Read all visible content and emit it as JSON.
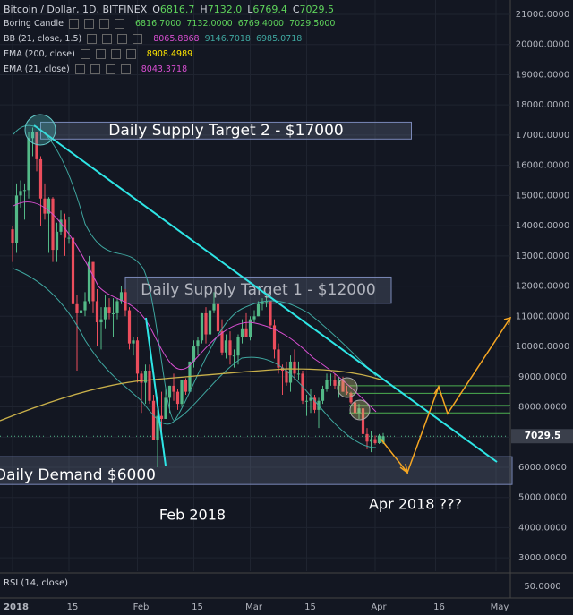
{
  "header": {
    "symbol": "Bitcoin / Dollar, 1D, BITFINEX",
    "ohlc": [
      [
        "O",
        "6816.7"
      ],
      [
        "H",
        "7132.0"
      ],
      [
        "L",
        "6769.4"
      ],
      [
        "C",
        "7029.5"
      ]
    ]
  },
  "indicators": [
    {
      "name": "Boring Candle",
      "values": [
        "6816.7000",
        "7132.0000",
        "6769.4000",
        "7029.5000"
      ],
      "colors": [
        "#5ed35b",
        "#5ed35b",
        "#5ed35b",
        "#5ed35b"
      ]
    },
    {
      "name": "BB (21, close, 1.5)",
      "values": [
        "8065.8868",
        "9146.7018",
        "6985.0718"
      ],
      "colors": [
        "#d94fd2",
        "#3fa7a0",
        "#3fa7a0"
      ]
    },
    {
      "name": "EMA (200, close)",
      "values": [
        "8908.4989"
      ],
      "colors": [
        "#ffe600"
      ]
    },
    {
      "name": "EMA (21, close)",
      "values": [
        "8043.3718"
      ],
      "colors": [
        "#d94fd2"
      ]
    }
  ],
  "chart": {
    "ylim": [
      2560,
      21474
    ],
    "yticks": [
      {
        "value": 21000,
        "label": "21000.0000"
      },
      {
        "value": 20000,
        "label": "20000.0000"
      },
      {
        "value": 19000,
        "label": "19000.0000"
      },
      {
        "value": 18000,
        "label": "18000.0000"
      },
      {
        "value": 17000,
        "label": "17000.0000"
      },
      {
        "value": 16000,
        "label": "16000.0000"
      },
      {
        "value": 15000,
        "label": "15000.0000"
      },
      {
        "value": 14000,
        "label": "14000.0000"
      },
      {
        "value": 13000,
        "label": "13000.0000"
      },
      {
        "value": 12000,
        "label": "12000.0000"
      },
      {
        "value": 11000,
        "label": "11000.0000"
      },
      {
        "value": 10000,
        "label": "10000.0000"
      },
      {
        "value": 9000,
        "label": "9000.0000"
      },
      {
        "value": 8000,
        "label": "8000.0000"
      },
      {
        "value": 7000,
        "label": "7000.0000"
      },
      {
        "value": 6000,
        "label": "6000.0000"
      },
      {
        "value": 5000,
        "label": "5000.0000"
      },
      {
        "value": 4000,
        "label": "4000.0000"
      },
      {
        "value": 3000,
        "label": "3000.0000"
      }
    ],
    "xticks": [
      {
        "value": 0,
        "label": "2018"
      },
      {
        "value": 14,
        "label": "15"
      },
      {
        "value": 31,
        "label": "Feb"
      },
      {
        "value": 45,
        "label": "15"
      },
      {
        "value": 59,
        "label": "Mar"
      },
      {
        "value": 73,
        "label": "15"
      },
      {
        "value": 90,
        "label": "Apr"
      },
      {
        "value": 105,
        "label": "16"
      },
      {
        "value": 120,
        "label": "May"
      }
    ],
    "last_price": {
      "value": 7029.5,
      "label": "7029.5"
    },
    "up_color": "#53b987",
    "down_color": "#eb4d5c",
    "candles": [
      [
        13880,
        14000,
        12800,
        13440
      ],
      [
        13440,
        15400,
        13100,
        15000
      ],
      [
        15000,
        15500,
        14600,
        15150
      ],
      [
        15150,
        15400,
        14200,
        15180
      ],
      [
        15180,
        17100,
        14900,
        16900
      ],
      [
        16900,
        17250,
        16300,
        17100
      ],
      [
        17100,
        17100,
        15800,
        16200
      ],
      [
        16200,
        16300,
        14000,
        14900
      ],
      [
        14900,
        15400,
        14200,
        14400
      ],
      [
        14400,
        14950,
        13100,
        14900
      ],
      [
        14900,
        14950,
        12800,
        13200
      ],
      [
        13200,
        14100,
        12800,
        13800
      ],
      [
        13800,
        14500,
        13700,
        14200
      ],
      [
        14200,
        14400,
        13000,
        13600
      ],
      [
        13600,
        14300,
        13400,
        13600
      ],
      [
        13600,
        13600,
        10000,
        11400
      ],
      [
        11400,
        11700,
        9200,
        11100
      ],
      [
        11100,
        12000,
        10800,
        11200
      ],
      [
        11200,
        11800,
        11000,
        11500
      ],
      [
        11500,
        13000,
        11400,
        12800
      ],
      [
        12800,
        12800,
        11100,
        11500
      ],
      [
        11500,
        11900,
        10000,
        10800
      ],
      [
        10800,
        11300,
        9900,
        10900
      ],
      [
        10900,
        11700,
        10600,
        11300
      ],
      [
        11300,
        11600,
        10900,
        11100
      ],
      [
        11100,
        11600,
        10300,
        11100
      ],
      [
        11100,
        11600,
        10900,
        11500
      ],
      [
        11500,
        12000,
        11400,
        11800
      ],
      [
        11800,
        11900,
        11000,
        11200
      ],
      [
        11200,
        11300,
        9900,
        10100
      ],
      [
        10100,
        10300,
        9700,
        10200
      ],
      [
        10200,
        10300,
        8800,
        9100
      ],
      [
        9100,
        9200,
        7800,
        8800
      ],
      [
        8800,
        9400,
        8100,
        9200
      ],
      [
        9200,
        9400,
        8100,
        8200
      ],
      [
        8200,
        8400,
        6900,
        6900
      ],
      [
        6900,
        7900,
        6000,
        7700
      ],
      [
        7700,
        8500,
        7200,
        7600
      ],
      [
        7600,
        8600,
        7600,
        8300
      ],
      [
        8300,
        8700,
        7800,
        8700
      ],
      [
        8700,
        9100,
        8200,
        8500
      ],
      [
        8500,
        8600,
        7900,
        8100
      ],
      [
        8100,
        8900,
        8000,
        8900
      ],
      [
        8900,
        8950,
        8400,
        8500
      ],
      [
        8500,
        9500,
        8500,
        9500
      ],
      [
        9500,
        10200,
        9300,
        10000
      ],
      [
        10000,
        10300,
        9700,
        10200
      ],
      [
        10200,
        11100,
        10100,
        11100
      ],
      [
        11100,
        11300,
        10100,
        10400
      ],
      [
        10400,
        11300,
        10400,
        11200
      ],
      [
        11200,
        11800,
        11100,
        11400
      ],
      [
        11400,
        11400,
        10400,
        10500
      ],
      [
        10500,
        10900,
        9700,
        9800
      ],
      [
        9800,
        10400,
        9600,
        10200
      ],
      [
        10200,
        10500,
        9400,
        9700
      ],
      [
        9700,
        9900,
        9300,
        9700
      ],
      [
        9700,
        10400,
        9400,
        10300
      ],
      [
        10300,
        10900,
        10100,
        10600
      ],
      [
        10600,
        11100,
        10300,
        10300
      ],
      [
        10300,
        11000,
        10200,
        10900
      ],
      [
        10900,
        11200,
        10800,
        11000
      ],
      [
        11000,
        11500,
        11000,
        11400
      ],
      [
        11400,
        11600,
        11200,
        11500
      ],
      [
        11500,
        11700,
        11300,
        11500
      ],
      [
        11500,
        11500,
        10600,
        10700
      ],
      [
        10700,
        10900,
        9600,
        9900
      ],
      [
        9900,
        10100,
        9100,
        9300
      ],
      [
        9300,
        9400,
        8400,
        9200
      ],
      [
        9200,
        9500,
        8700,
        8800
      ],
      [
        8800,
        9700,
        8500,
        9500
      ],
      [
        9500,
        9900,
        8900,
        9100
      ],
      [
        9100,
        9500,
        8900,
        9100
      ],
      [
        9100,
        9200,
        8100,
        8200
      ],
      [
        8200,
        8400,
        7700,
        8200
      ],
      [
        8200,
        8600,
        7800,
        8300
      ],
      [
        8300,
        8400,
        7800,
        7900
      ],
      [
        7900,
        8300,
        7300,
        8200
      ],
      [
        8200,
        8700,
        8100,
        8600
      ],
      [
        8600,
        9100,
        8500,
        8900
      ],
      [
        8900,
        9100,
        8700,
        8900
      ],
      [
        8900,
        9100,
        8600,
        8700
      ],
      [
        8700,
        9000,
        8300,
        8900
      ],
      [
        8900,
        9000,
        8500,
        8500
      ],
      [
        8500,
        8700,
        8400,
        8450
      ],
      [
        8450,
        8500,
        8100,
        8150
      ],
      [
        8150,
        8200,
        7800,
        7800
      ],
      [
        7800,
        8100,
        7600,
        7950
      ],
      [
        7950,
        7950,
        6900,
        7100
      ],
      [
        7100,
        7300,
        6600,
        6850
      ],
      [
        6850,
        7200,
        6500,
        6930
      ],
      [
        6930,
        7050,
        6750,
        6800
      ],
      [
        6800,
        7100,
        6770,
        7050
      ],
      [
        6816.7,
        7132,
        6769.4,
        7029.5
      ]
    ],
    "zones": [
      {
        "name": "Daily Supply Target 2 - $17000",
        "low": 16870,
        "high": 17430,
        "from": 7,
        "to": 99,
        "text_color": "#ffffff"
      },
      {
        "name": "Daily Supply Target 1 - $12000",
        "low": 11430,
        "high": 12300,
        "from": 28,
        "to": 94,
        "text_color": "#b2b5be"
      },
      {
        "name": "Daily Demand $6000",
        "low": 5430,
        "high": 6350,
        "from": -4,
        "to": 124,
        "text_color": "#ffffff"
      }
    ],
    "levels": [
      8700,
      8450,
      8050,
      7800
    ],
    "notes": [
      "Feb 2018",
      "Apr 2018 ???"
    ]
  },
  "rsi": {
    "name": "RSI (14, close)",
    "level": "50.0000"
  }
}
